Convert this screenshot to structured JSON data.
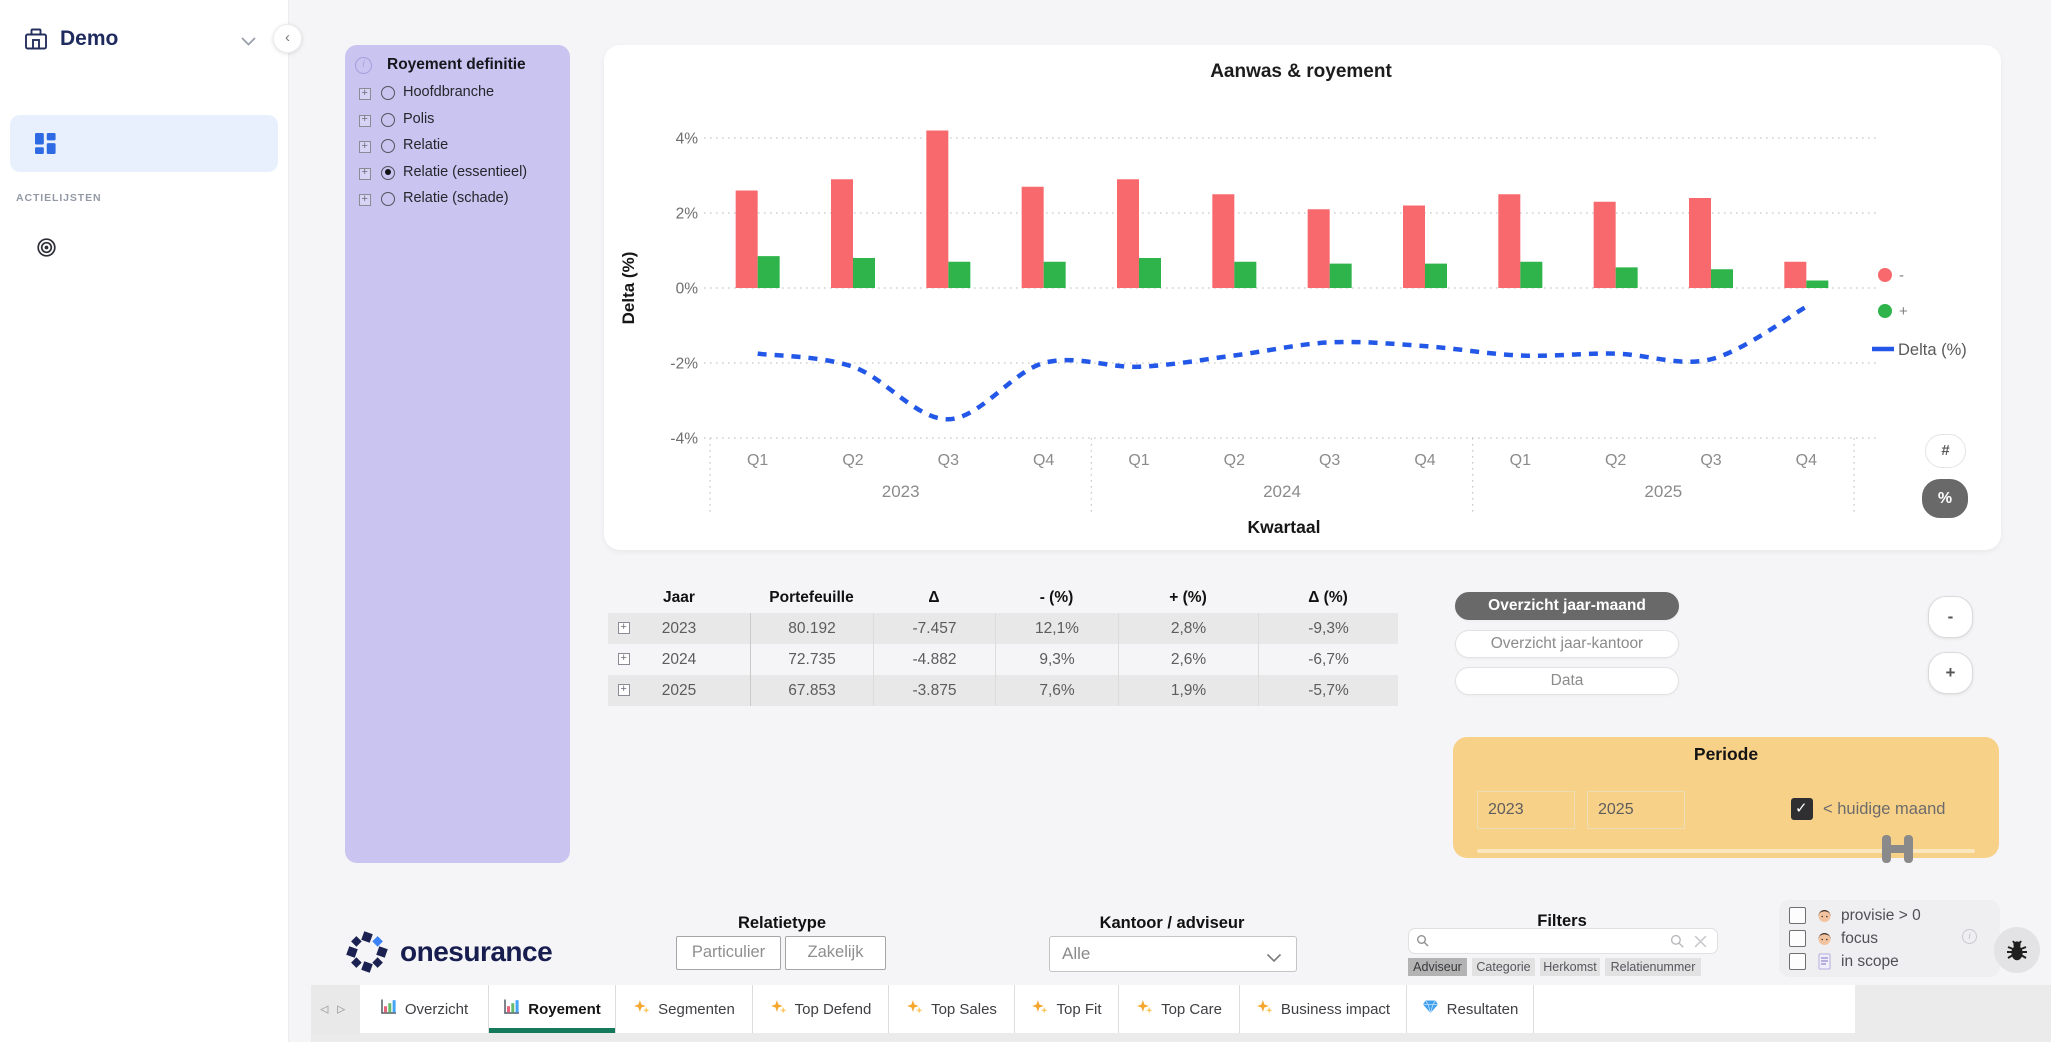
{
  "sidebar": {
    "workspace": "Demo",
    "nav": [
      {
        "label": "Dashboard",
        "active": true
      }
    ],
    "section": "ACTIELIJSTEN",
    "actions": [
      {
        "label": "Focus"
      }
    ]
  },
  "definition_panel": {
    "title": "Royement definitie",
    "options": [
      {
        "label": "Hoofdbranche",
        "selected": false
      },
      {
        "label": "Polis",
        "selected": false
      },
      {
        "label": "Relatie",
        "selected": false
      },
      {
        "label": "Relatie (essentieel)",
        "selected": true
      },
      {
        "label": "Relatie (schade)",
        "selected": false
      }
    ]
  },
  "chart_data": {
    "type": "bar+line",
    "title": "Aanwas & royement",
    "xlabel": "Kwartaal",
    "ylabel": "Delta (%)",
    "years": [
      "2023",
      "2024",
      "2025"
    ],
    "quarters": [
      "Q1",
      "Q2",
      "Q3",
      "Q4"
    ],
    "categories": [
      "2023 Q1",
      "2023 Q2",
      "2023 Q3",
      "2023 Q4",
      "2024 Q1",
      "2024 Q2",
      "2024 Q3",
      "2024 Q4",
      "2025 Q1",
      "2025 Q2",
      "2025 Q3",
      "2025 Q4"
    ],
    "ylim": [
      -4,
      4
    ],
    "yticks": [
      4,
      2,
      0,
      -2,
      -4
    ],
    "ytick_labels": [
      "4%",
      "2%",
      "0%",
      "-2%",
      "-4%"
    ],
    "grid": "dotted-horizontal",
    "legend_position": "right",
    "series": [
      {
        "name": "-",
        "type": "bar",
        "color": "#f8696d",
        "values": [
          2.6,
          2.9,
          4.2,
          2.7,
          2.9,
          2.5,
          2.1,
          2.2,
          2.5,
          2.3,
          2.4,
          0.7
        ]
      },
      {
        "name": "+",
        "type": "bar",
        "color": "#2eb44a",
        "values": [
          0.85,
          0.8,
          0.7,
          0.7,
          0.8,
          0.7,
          0.65,
          0.65,
          0.7,
          0.55,
          0.5,
          0.2
        ]
      },
      {
        "name": "Delta (%)",
        "type": "line",
        "dashed": true,
        "color": "#2257e7",
        "values": [
          -1.75,
          -2.1,
          -3.5,
          -2.0,
          -2.1,
          -1.8,
          -1.45,
          -1.55,
          -1.8,
          -1.75,
          -1.9,
          -0.5
        ]
      }
    ]
  },
  "chart_toolbar": {
    "hash": "#",
    "percent": "%"
  },
  "table": {
    "columns": [
      "Jaar",
      "Portefeuille",
      "Δ",
      "- (%)",
      "+ (%)",
      "Δ (%)"
    ],
    "rows": [
      {
        "cells": [
          "2023",
          "80.192",
          "-7.457",
          "12,1%",
          "2,8%",
          "-9,3%"
        ]
      },
      {
        "cells": [
          "2024",
          "72.735",
          "-4.882",
          "9,3%",
          "2,6%",
          "-6,7%"
        ]
      },
      {
        "cells": [
          "2025",
          "67.853",
          "-3.875",
          "7,6%",
          "1,9%",
          "-5,7%"
        ]
      }
    ]
  },
  "view_buttons": [
    {
      "label": "Overzicht jaar-maand",
      "active": true
    },
    {
      "label": "Overzicht jaar-kantoor",
      "active": false
    },
    {
      "label": "Data",
      "active": false
    }
  ],
  "stepper": {
    "minus": "-",
    "plus": "+"
  },
  "periode": {
    "title": "Periode",
    "from": "2023",
    "to": "2025",
    "checkbox_label": "< huidige maand",
    "checked": true
  },
  "footer": {
    "brand": "onesurance",
    "relatietype": {
      "title": "Relatietype",
      "buttons": [
        "Particulier",
        "Zakelijk"
      ]
    },
    "kantoor": {
      "title": "Kantoor / adviseur",
      "value": "Alle"
    },
    "filters": {
      "title": "Filters",
      "search_value": "",
      "tabs": [
        {
          "label": "Adviseur",
          "active": true
        },
        {
          "label": "Categorie",
          "active": false
        },
        {
          "label": "Herkomst",
          "active": false
        },
        {
          "label": "Relatienummer",
          "active": false
        }
      ]
    },
    "flags": [
      {
        "icon": "person-icon",
        "label": "provisie > 0",
        "checked": false
      },
      {
        "icon": "person-icon",
        "label": "focus",
        "checked": false
      },
      {
        "icon": "document-icon",
        "label": "in scope",
        "checked": false
      }
    ]
  },
  "tabbar": {
    "tabs": [
      {
        "label": "Overzicht",
        "icon": "bar-chart",
        "active": false
      },
      {
        "label": "Royement",
        "icon": "bar-chart",
        "active": true
      },
      {
        "label": "Segmenten",
        "icon": "sparkles",
        "active": false
      },
      {
        "label": "Top Defend",
        "icon": "sparkles",
        "active": false
      },
      {
        "label": "Top Sales",
        "icon": "sparkles",
        "active": false
      },
      {
        "label": "Top Fit",
        "icon": "sparkles",
        "active": false
      },
      {
        "label": "Top Care",
        "icon": "sparkles",
        "active": false
      },
      {
        "label": "Business impact",
        "icon": "sparkles",
        "active": false
      },
      {
        "label": "Resultaten",
        "icon": "gem",
        "active": false
      }
    ]
  }
}
